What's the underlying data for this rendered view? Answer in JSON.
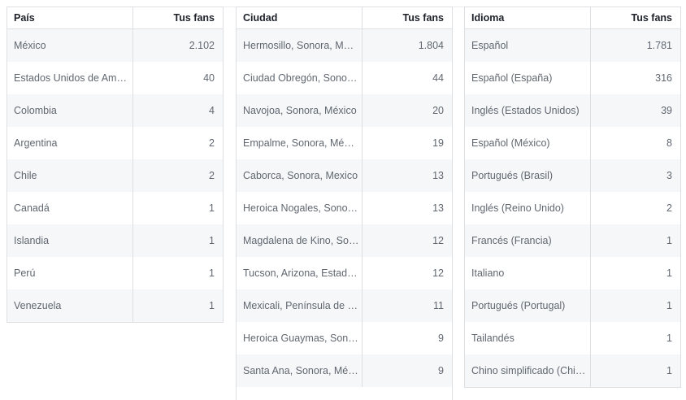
{
  "tables": {
    "pais": {
      "header": {
        "name": "País",
        "value": "Tus fans"
      },
      "rows": [
        {
          "name": "México",
          "value": "2.102"
        },
        {
          "name": "Estados Unidos de Am…",
          "value": "40"
        },
        {
          "name": "Colombia",
          "value": "4"
        },
        {
          "name": "Argentina",
          "value": "2"
        },
        {
          "name": "Chile",
          "value": "2"
        },
        {
          "name": "Canadá",
          "value": "1"
        },
        {
          "name": "Islandia",
          "value": "1"
        },
        {
          "name": "Perú",
          "value": "1"
        },
        {
          "name": "Venezuela",
          "value": "1"
        }
      ]
    },
    "ciudad": {
      "header": {
        "name": "Ciudad",
        "value": "Tus fans"
      },
      "rows": [
        {
          "name": "Hermosillo, Sonora, M…",
          "value": "1.804"
        },
        {
          "name": "Ciudad Obregón, Sono…",
          "value": "44"
        },
        {
          "name": "Navojoa, Sonora, México",
          "value": "20"
        },
        {
          "name": "Empalme, Sonora, Mé…",
          "value": "19"
        },
        {
          "name": "Caborca, Sonora, Mexico",
          "value": "13"
        },
        {
          "name": "Heroica Nogales, Sono…",
          "value": "13"
        },
        {
          "name": "Magdalena de Kino, So…",
          "value": "12"
        },
        {
          "name": "Tucson, Arizona, Estad…",
          "value": "12"
        },
        {
          "name": "Mexicali, Península de …",
          "value": "11"
        },
        {
          "name": "Heroica Guaymas, Son…",
          "value": "9"
        },
        {
          "name": "Santa Ana, Sonora, Mé…",
          "value": "9"
        }
      ]
    },
    "idioma": {
      "header": {
        "name": "Idioma",
        "value": "Tus fans"
      },
      "rows": [
        {
          "name": "Español",
          "value": "1.781"
        },
        {
          "name": "Español (España)",
          "value": "316"
        },
        {
          "name": "Inglés (Estados Unidos)",
          "value": "39"
        },
        {
          "name": "Español (México)",
          "value": "8"
        },
        {
          "name": "Portugués (Brasil)",
          "value": "3"
        },
        {
          "name": "Inglés (Reino Unido)",
          "value": "2"
        },
        {
          "name": "Francés (Francia)",
          "value": "1"
        },
        {
          "name": "Italiano",
          "value": "1"
        },
        {
          "name": "Portugués (Portugal)",
          "value": "1"
        },
        {
          "name": "Tailandés",
          "value": "1"
        },
        {
          "name": "Chino simplificado (Chi…",
          "value": "1"
        }
      ]
    }
  }
}
